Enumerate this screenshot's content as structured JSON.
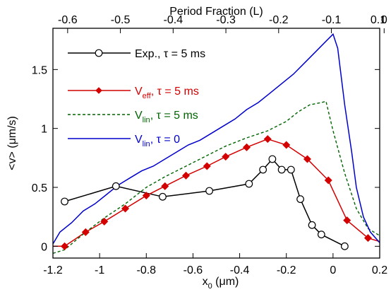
{
  "chart_data": {
    "type": "line",
    "title": "",
    "xlabel": "x",
    "xlabel_sub": "0",
    "xlabel_unit": " (μm)",
    "ylabel": "<v> (μm/s)",
    "top_axis_label": "Period Fraction (L)",
    "xlim": [
      -1.2,
      0.2
    ],
    "ylim": [
      -0.1,
      1.85
    ],
    "x_ticks": [
      -1.2,
      -1,
      -0.8,
      -0.6,
      -0.4,
      -0.2,
      0,
      0.2
    ],
    "x_tick_labels": [
      "-1.2",
      "-1",
      "-0.8",
      "-0.6",
      "-0.4",
      "-0.2",
      "0",
      "0.2"
    ],
    "y_ticks": [
      0,
      0.5,
      1,
      1.5
    ],
    "y_tick_labels": [
      "0",
      "0.5",
      "1",
      "1.5"
    ],
    "top_ticks_x": [
      -1.137,
      -0.911,
      -0.685,
      -0.459,
      -0.233,
      -0.007,
      0.219
    ],
    "top_tick_labels": [
      "-0.6",
      "-0.5",
      "-0.4",
      "-0.3",
      "-0.2",
      "-0.1",
      "0"
    ],
    "top_extra_tick_label": "0.1",
    "grid": false,
    "legend_position": "top-left",
    "series": [
      {
        "name": "Exp., τ = 5 ms",
        "legend_main": "Exp., ",
        "legend_sub": "",
        "legend_rest": "τ = 5 ms",
        "color": "#000000",
        "style": "solid",
        "marker": "open-circle",
        "x": [
          -1.15,
          -0.93,
          -0.73,
          -0.53,
          -0.36,
          -0.3,
          -0.26,
          -0.22,
          -0.18,
          -0.14,
          -0.09,
          -0.05,
          0.05
        ],
        "y": [
          0.38,
          0.51,
          0.42,
          0.47,
          0.53,
          0.65,
          0.74,
          0.65,
          0.65,
          0.4,
          0.18,
          0.1,
          0.0
        ]
      },
      {
        "name": "Veff, τ = 5 ms",
        "legend_main": "V",
        "legend_sub": "eff",
        "legend_rest": ",  τ = 5 ms",
        "color": "#d40000",
        "style": "solid",
        "marker": "filled-diamond",
        "x": [
          -1.2,
          -1.15,
          -1.06,
          -0.98,
          -0.89,
          -0.8,
          -0.72,
          -0.63,
          -0.54,
          -0.46,
          -0.37,
          -0.28,
          -0.2,
          -0.11,
          -0.02,
          0.06,
          0.15,
          0.2
        ],
        "y": [
          0.0,
          0.0,
          0.12,
          0.21,
          0.32,
          0.43,
          0.51,
          0.6,
          0.68,
          0.76,
          0.84,
          0.91,
          0.86,
          0.74,
          0.56,
          0.22,
          0.07,
          0.04
        ],
        "markers_x": [
          -1.15,
          -1.06,
          -0.98,
          -0.89,
          -0.8,
          -0.72,
          -0.63,
          -0.54,
          -0.46,
          -0.37,
          -0.28,
          -0.2,
          -0.11,
          -0.02,
          0.06,
          0.15
        ],
        "markers_y": [
          0.0,
          0.12,
          0.21,
          0.32,
          0.43,
          0.51,
          0.6,
          0.68,
          0.76,
          0.84,
          0.91,
          0.86,
          0.74,
          0.56,
          0.22,
          0.07
        ]
      },
      {
        "name": "Vlin, τ = 5 ms",
        "legend_main": "V",
        "legend_sub": "lin",
        "legend_rest": ",  τ = 5 ms",
        "color": "#006400",
        "style": "dashed",
        "marker": "none",
        "x": [
          -1.2,
          -1.15,
          -1.06,
          -0.98,
          -0.89,
          -0.8,
          -0.72,
          -0.63,
          -0.54,
          -0.46,
          -0.37,
          -0.28,
          -0.2,
          -0.15,
          -0.1,
          -0.05,
          -0.03,
          0.0,
          0.05,
          0.1,
          0.15,
          0.2
        ],
        "y": [
          -0.06,
          -0.03,
          0.12,
          0.24,
          0.36,
          0.5,
          0.59,
          0.68,
          0.77,
          0.85,
          0.92,
          0.98,
          1.06,
          1.14,
          1.2,
          1.22,
          1.23,
          0.98,
          0.62,
          0.32,
          0.15,
          0.09
        ]
      },
      {
        "name": "Vlin, τ = 0",
        "legend_main": "V",
        "legend_sub": "lin",
        "legend_rest": ",  τ = 0",
        "color": "#0000cc",
        "style": "solid",
        "marker": "none",
        "x": [
          -1.2,
          -1.17,
          -1.12,
          -1.07,
          -1.02,
          -0.97,
          -0.92,
          -0.87,
          -0.82,
          -0.77,
          -0.72,
          -0.67,
          -0.62,
          -0.57,
          -0.52,
          -0.47,
          -0.42,
          -0.37,
          -0.32,
          -0.27,
          -0.22,
          -0.17,
          -0.12,
          -0.07,
          -0.03,
          0.0,
          0.02,
          0.05,
          0.08,
          0.1,
          0.13,
          0.16,
          0.2
        ],
        "y": [
          0.02,
          0.12,
          0.2,
          0.3,
          0.36,
          0.44,
          0.52,
          0.58,
          0.64,
          0.68,
          0.74,
          0.8,
          0.86,
          0.9,
          0.96,
          1.02,
          1.08,
          1.16,
          1.22,
          1.3,
          1.38,
          1.46,
          1.56,
          1.66,
          1.74,
          1.8,
          1.68,
          1.2,
          0.8,
          0.5,
          0.25,
          0.12,
          0.03
        ]
      }
    ]
  }
}
